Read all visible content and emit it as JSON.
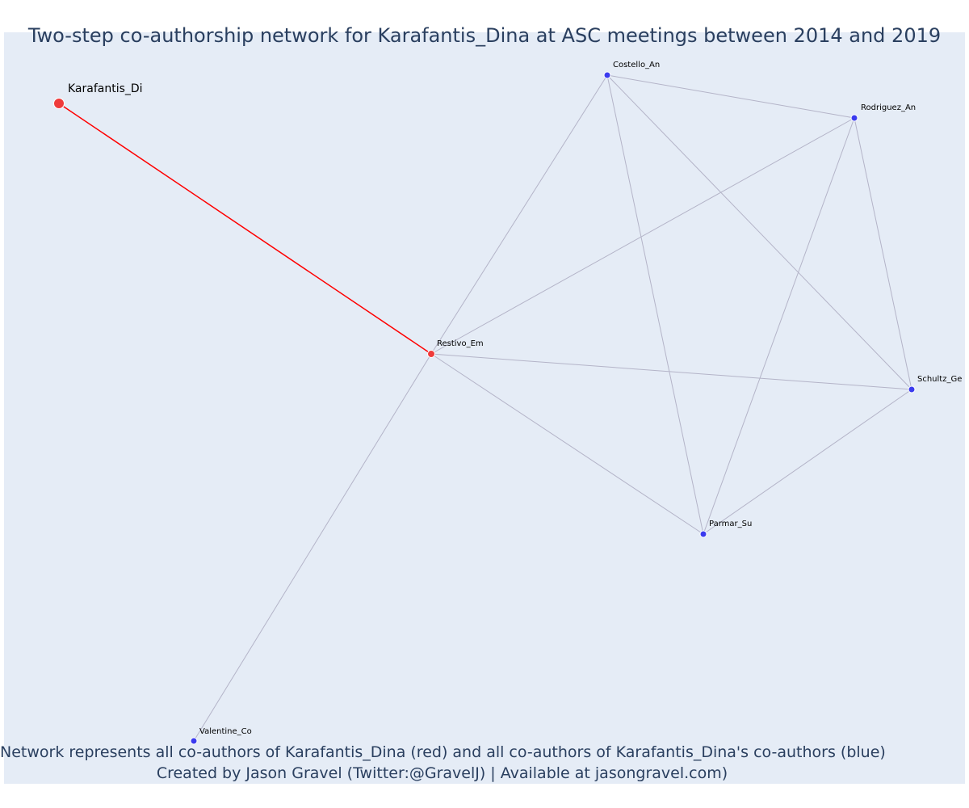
{
  "title": "Two-step co-authorship network for Karafantis_Dina at ASC meetings between 2014 and 2019",
  "caption": {
    "line1": "Network represents all co-authors of Karafantis_Dina (red) and all co-authors of Karafantis_Dina's co-authors (blue)",
    "line2": "Created by Jason Gravel (Twitter:@GravelJ) | Available at jasongravel.com)"
  },
  "colors": {
    "plot_background": "#e5ecf6",
    "focal_edge": "#ff0000",
    "edge": "#b4b4c8",
    "red_node": "#ef3b3b",
    "blue_node": "#3b3bef",
    "text": "#2a3f5f"
  },
  "nodes": [
    {
      "id": "karafantis",
      "label": "Karafantis_Di",
      "group": "focal"
    },
    {
      "id": "restivo",
      "label": "Restivo_Em",
      "group": "coauthor"
    },
    {
      "id": "costello",
      "label": "Costello_An",
      "group": "second"
    },
    {
      "id": "rodriguez",
      "label": "Rodriguez_An",
      "group": "second"
    },
    {
      "id": "schultz",
      "label": "Schultz_Ge",
      "group": "second"
    },
    {
      "id": "parmar",
      "label": "Parmar_Su",
      "group": "second"
    },
    {
      "id": "valentine",
      "label": "Valentine_Co",
      "group": "second"
    }
  ],
  "edges": [
    {
      "source": "karafantis",
      "target": "restivo",
      "type": "focal"
    },
    {
      "source": "restivo",
      "target": "costello",
      "type": "normal"
    },
    {
      "source": "restivo",
      "target": "rodriguez",
      "type": "normal"
    },
    {
      "source": "restivo",
      "target": "schultz",
      "type": "normal"
    },
    {
      "source": "restivo",
      "target": "parmar",
      "type": "normal"
    },
    {
      "source": "restivo",
      "target": "valentine",
      "type": "normal"
    },
    {
      "source": "costello",
      "target": "rodriguez",
      "type": "normal"
    },
    {
      "source": "costello",
      "target": "schultz",
      "type": "normal"
    },
    {
      "source": "costello",
      "target": "parmar",
      "type": "normal"
    },
    {
      "source": "rodriguez",
      "target": "schultz",
      "type": "normal"
    },
    {
      "source": "rodriguez",
      "target": "parmar",
      "type": "normal"
    },
    {
      "source": "schultz",
      "target": "parmar",
      "type": "normal"
    }
  ]
}
